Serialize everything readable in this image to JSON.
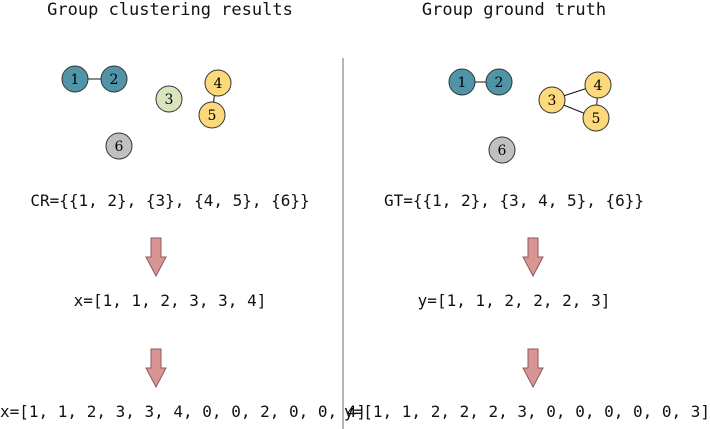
{
  "colors": {
    "blue": "#4f95a7",
    "green": "#d8e4bc",
    "yellow": "#fcd97a",
    "gray": "#c0c0c0",
    "arrow": "#d99594",
    "divider": "#b5b5b5"
  },
  "left": {
    "title": "Group clustering results",
    "set_expr": "CR={{1, 2}, {3}, {4, 5}, {6}}",
    "vector_expr": "x=[1, 1, 2, 3, 3, 4]",
    "extended_expr": "x=[1, 1, 2, 3, 3, 4, 0, 0, 2, 0, 0, 4]",
    "nodes": [
      {
        "label": "1",
        "color": "blue"
      },
      {
        "label": "2",
        "color": "blue"
      },
      {
        "label": "3",
        "color": "green"
      },
      {
        "label": "4",
        "color": "yellow"
      },
      {
        "label": "5",
        "color": "yellow"
      },
      {
        "label": "6",
        "color": "gray"
      }
    ]
  },
  "right": {
    "title": "Group ground truth",
    "set_expr": "GT={{1, 2}, {3, 4, 5}, {6}}",
    "vector_expr": "y=[1, 1, 2, 2, 2, 3]",
    "extended_expr": "y=[1, 1, 2, 2, 2, 3, 0, 0, 0, 0, 0, 3]",
    "nodes": [
      {
        "label": "1",
        "color": "blue"
      },
      {
        "label": "2",
        "color": "blue"
      },
      {
        "label": "3",
        "color": "yellow"
      },
      {
        "label": "4",
        "color": "yellow"
      },
      {
        "label": "5",
        "color": "yellow"
      },
      {
        "label": "6",
        "color": "gray"
      }
    ]
  }
}
